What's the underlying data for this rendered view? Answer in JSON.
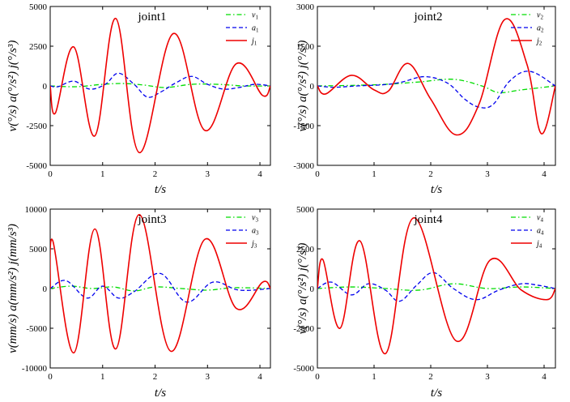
{
  "chart_data": [
    {
      "type": "line",
      "title": "joint1",
      "xlabel": "t/s",
      "ylabel": "v(°/s)  a(°/s²)  j(°/s³)",
      "xlim": [
        0,
        4.2
      ],
      "ylim": [
        -5000,
        5000
      ],
      "xticks": [
        "0",
        "1",
        "2",
        "3",
        "4"
      ],
      "yticks": [
        "5000",
        "2500",
        "0",
        "-2500",
        "-5000"
      ],
      "legend": [
        "v1",
        "a1",
        "j1"
      ],
      "series": [
        {
          "name": "v1",
          "color": "#00dd00",
          "style": "dashdot",
          "x": [
            0,
            0.5,
            1.0,
            1.4,
            1.8,
            2.2,
            2.7,
            3.2,
            3.7,
            4.2
          ],
          "y": [
            0,
            -50,
            100,
            150,
            50,
            -100,
            100,
            100,
            0,
            0
          ]
        },
        {
          "name": "a1",
          "color": "#0000ee",
          "style": "dashed",
          "x": [
            0,
            0.15,
            0.45,
            0.75,
            1.05,
            1.3,
            1.6,
            1.85,
            2.1,
            2.4,
            2.7,
            3.0,
            3.3,
            3.6,
            3.9,
            4.2
          ],
          "y": [
            0,
            -50,
            300,
            -200,
            100,
            800,
            100,
            -700,
            -400,
            200,
            600,
            100,
            -200,
            -100,
            100,
            0
          ]
        },
        {
          "name": "j1",
          "color": "#ee0000",
          "style": "solid",
          "x": [
            0,
            0.1,
            0.45,
            0.85,
            1.25,
            1.7,
            2.35,
            2.95,
            3.55,
            4.05,
            4.2
          ],
          "y": [
            0,
            -1700,
            2450,
            -3150,
            4250,
            -4200,
            3300,
            -2800,
            1400,
            -600,
            0
          ]
        }
      ]
    },
    {
      "type": "line",
      "title": "joint2",
      "xlabel": "t/s",
      "ylabel": "v(°/s)  a(°/s²)  j(°/s³)",
      "xlim": [
        0,
        4.2
      ],
      "ylim": [
        -3000,
        3000
      ],
      "xticks": [
        "0",
        "1",
        "2",
        "3",
        "4"
      ],
      "yticks": [
        "3000",
        "1500",
        "0",
        "-1500",
        "-3000"
      ],
      "legend": [
        "v2",
        "a2",
        "j2"
      ],
      "series": [
        {
          "name": "v2",
          "color": "#00dd00",
          "style": "dashdot",
          "x": [
            0,
            0.6,
            1.2,
            1.8,
            2.4,
            2.9,
            3.2,
            3.6,
            4.2
          ],
          "y": [
            0,
            20,
            60,
            150,
            250,
            0,
            -250,
            -150,
            0
          ]
        },
        {
          "name": "a2",
          "color": "#0000ee",
          "style": "dashed",
          "x": [
            0,
            0.3,
            0.7,
            1.2,
            1.5,
            1.9,
            2.3,
            2.6,
            2.85,
            3.1,
            3.4,
            3.75,
            4.2
          ],
          "y": [
            0,
            -50,
            0,
            50,
            150,
            350,
            100,
            -500,
            -800,
            -700,
            200,
            550,
            0
          ]
        },
        {
          "name": "j2",
          "color": "#ee0000",
          "style": "solid",
          "x": [
            0,
            0.15,
            0.6,
            1.0,
            1.25,
            1.6,
            2.0,
            2.45,
            2.85,
            3.3,
            3.7,
            3.95,
            4.2
          ],
          "y": [
            0,
            -300,
            400,
            -150,
            -200,
            850,
            -500,
            -1850,
            -700,
            2500,
            800,
            -1800,
            0
          ]
        }
      ]
    },
    {
      "type": "line",
      "title": "joint3",
      "xlabel": "t/s",
      "ylabel": "v(mm/s)  a(mm/s²)  j(mm/s³)",
      "xlim": [
        0,
        4.2
      ],
      "ylim": [
        -10000,
        10000
      ],
      "xticks": [
        "0",
        "1",
        "2",
        "3",
        "4"
      ],
      "yticks": [
        "10000",
        "5000",
        "0",
        "-5000",
        "-10000"
      ],
      "legend": [
        "v3",
        "a3",
        "j3"
      ],
      "series": [
        {
          "name": "v3",
          "color": "#00dd00",
          "style": "dashdot",
          "x": [
            0,
            0.4,
            0.8,
            1.2,
            1.6,
            2.0,
            2.5,
            3.0,
            3.5,
            4.2
          ],
          "y": [
            0,
            300,
            0,
            200,
            -300,
            200,
            0,
            -200,
            100,
            0
          ]
        },
        {
          "name": "a3",
          "color": "#0000ee",
          "style": "dashed",
          "x": [
            0,
            0.3,
            0.7,
            1.0,
            1.3,
            1.6,
            2.1,
            2.6,
            3.1,
            3.6,
            4.2
          ],
          "y": [
            0,
            1000,
            -1200,
            300,
            -1200,
            -400,
            1900,
            -1700,
            800,
            -200,
            0
          ]
        },
        {
          "name": "j3",
          "color": "#ee0000",
          "style": "solid",
          "x": [
            0,
            0.05,
            0.45,
            0.85,
            1.25,
            1.7,
            2.3,
            2.95,
            3.55,
            4.05,
            4.2
          ],
          "y": [
            0,
            6000,
            -8100,
            7500,
            -7600,
            9300,
            -7900,
            6200,
            -2500,
            800,
            0
          ]
        }
      ]
    },
    {
      "type": "line",
      "title": "joint4",
      "xlabel": "t/s",
      "ylabel": "v(°/s)  a(°/s²)  j(°/s³)",
      "xlim": [
        0,
        4.2
      ],
      "ylim": [
        -5000,
        5000
      ],
      "xticks": [
        "0",
        "1",
        "2",
        "3",
        "4"
      ],
      "yticks": [
        "5000",
        "2500",
        "0",
        "-2500",
        "-5000"
      ],
      "legend": [
        "v4",
        "a4",
        "j4"
      ],
      "series": [
        {
          "name": "v4",
          "color": "#00dd00",
          "style": "dashdot",
          "x": [
            0,
            0.6,
            1.2,
            1.8,
            2.4,
            3.0,
            3.6,
            4.2
          ],
          "y": [
            0,
            100,
            0,
            -100,
            300,
            0,
            100,
            0
          ]
        },
        {
          "name": "a4",
          "color": "#0000ee",
          "style": "dashed",
          "x": [
            0,
            0.25,
            0.6,
            0.9,
            1.2,
            1.45,
            1.75,
            2.05,
            2.4,
            2.8,
            3.2,
            3.6,
            3.9,
            4.2
          ],
          "y": [
            0,
            400,
            -400,
            300,
            -100,
            -800,
            200,
            1000,
            0,
            -700,
            -100,
            300,
            200,
            0
          ]
        },
        {
          "name": "j4",
          "color": "#ee0000",
          "style": "solid",
          "x": [
            0,
            0.1,
            0.4,
            0.75,
            1.2,
            1.7,
            2.45,
            3.05,
            3.6,
            4.05,
            4.2
          ],
          "y": [
            0,
            1800,
            -2500,
            3000,
            -4100,
            4450,
            -3300,
            1800,
            -100,
            -700,
            0
          ]
        }
      ]
    }
  ]
}
